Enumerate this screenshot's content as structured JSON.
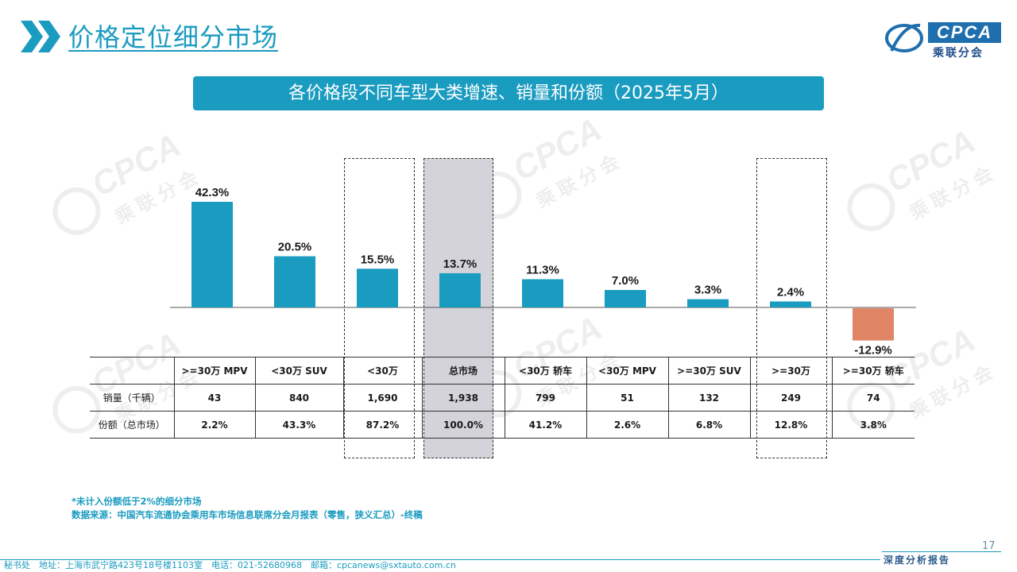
{
  "header": {
    "title": "价格定位细分市场",
    "logo_text": "CPCA",
    "logo_cn": "乘联分会"
  },
  "banner": "各价格段不同车型大类增速、销量和份额（2025年5月）",
  "watermark": {
    "text": "CPCA",
    "cn": "乘联分会"
  },
  "colors": {
    "accent": "#1a9bc0",
    "positive_bar": "#1a9bc0",
    "negative_bar": "#e08565",
    "highlight_grey": "#d3d3d9"
  },
  "chart_data": {
    "type": "bar",
    "title": "各价格段不同车型大类增速、销量和份额（2025年5月）",
    "categories": [
      ">=30万 MPV",
      "<30万 SUV",
      "<30万",
      "总市场",
      "<30万 轿车",
      "<30万 MPV",
      ">=30万 SUV",
      ">=30万",
      ">=30万 轿车"
    ],
    "values": [
      42.3,
      20.5,
      15.5,
      13.7,
      11.3,
      7.0,
      3.3,
      2.4,
      -12.9
    ],
    "data_labels": [
      "42.3%",
      "20.5%",
      "15.5%",
      "13.7%",
      "11.3%",
      "7.0%",
      "3.3%",
      "2.4%",
      "-12.9%"
    ],
    "ylim": [
      -15,
      45
    ],
    "grid": false,
    "legend": "none",
    "highlighted_dashed": [
      "<30万",
      ">=30万"
    ],
    "highlighted_grey": [
      "总市场"
    ]
  },
  "table": {
    "headers": [
      ">=30万 MPV",
      "<30万 SUV",
      "<30万",
      "总市场",
      "<30万 轿车",
      "<30万 MPV",
      ">=30万 SUV",
      ">=30万",
      ">=30万 轿车"
    ],
    "rows": [
      {
        "label": "销量（千辆）",
        "cells": [
          "43",
          "840",
          "1,690",
          "1,938",
          "799",
          "51",
          "132",
          "249",
          "74"
        ]
      },
      {
        "label": "份额（总市场）",
        "cells": [
          "2.2%",
          "43.3%",
          "87.2%",
          "100.0%",
          "41.2%",
          "2.6%",
          "6.8%",
          "12.8%",
          "3.8%"
        ]
      }
    ]
  },
  "footnote": {
    "note": "*未计入份额低于2%的细分市场",
    "source": "数据来源：中国汽车流通协会乘用车市场信息联席分会月报表（零售，狭义汇总）-终稿"
  },
  "page_number": "17",
  "report_tag": "深度分析报告",
  "footer": "秘书处　地址：上海市武宁路423号18号楼1103室　电话：021-52680968　邮箱：cpcanews@sxtauto.com.cn"
}
